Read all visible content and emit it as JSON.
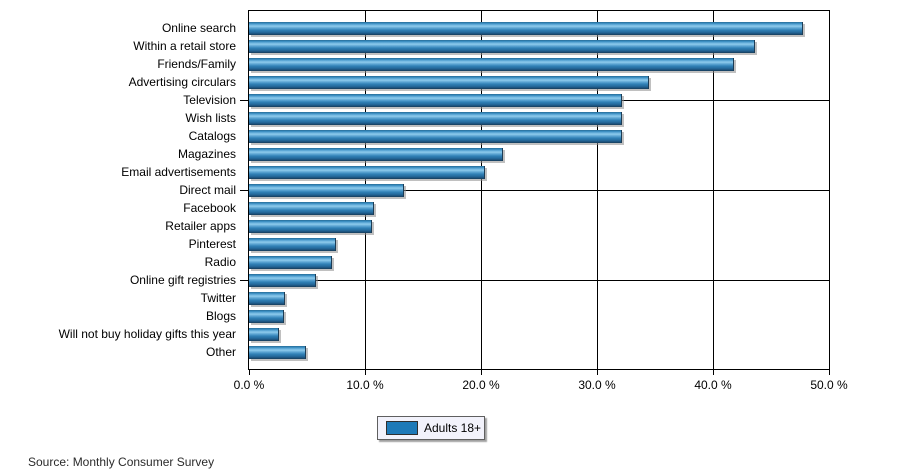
{
  "chart_data": {
    "type": "bar",
    "orientation": "horizontal",
    "title": "",
    "xlabel": "",
    "ylabel": "",
    "categories": [
      "Online search",
      "Within a retail store",
      "Friends/Family",
      "Advertising circulars",
      "Television",
      "Wish lists",
      "Catalogs",
      "Magazines",
      "Email advertisements",
      "Direct mail",
      "Facebook",
      "Retailer apps",
      "Pinterest",
      "Radio",
      "Online gift registries",
      "Twitter",
      "Blogs",
      "Will not buy holiday gifts this year",
      "Other"
    ],
    "series": [
      {
        "name": "Adults 18+",
        "values": [
          47.7,
          43.5,
          41.7,
          34.4,
          32.1,
          32.1,
          32.1,
          21.8,
          20.3,
          13.3,
          10.7,
          10.5,
          7.4,
          7.1,
          5.7,
          3.0,
          2.9,
          2.5,
          4.8
        ]
      }
    ],
    "xlim": [
      0,
      50
    ],
    "x_tick_values": [
      0,
      10,
      20,
      30,
      40,
      50
    ],
    "x_tick_labels": [
      "0.0 %",
      "10.0 %",
      "20.0 %",
      "30.0 %",
      "40.0 %",
      "50.0 %"
    ],
    "y_tick_interval": 5,
    "grid": true,
    "legend_position": "bottom",
    "bar_color": "#1e7ab8"
  },
  "legend": {
    "label": "Adults 18+",
    "swatch_color": "#1e7ab8"
  },
  "footer": {
    "source": "Source: Monthly Consumer Survey"
  },
  "colors": {
    "bar_main": "#1e7ab8",
    "bar_highlight": "#8ecbec",
    "bar_dark_edge": "#173c58",
    "grid": "#000000",
    "legend_bg": "#f2f2fb",
    "background": "#ffffff"
  }
}
